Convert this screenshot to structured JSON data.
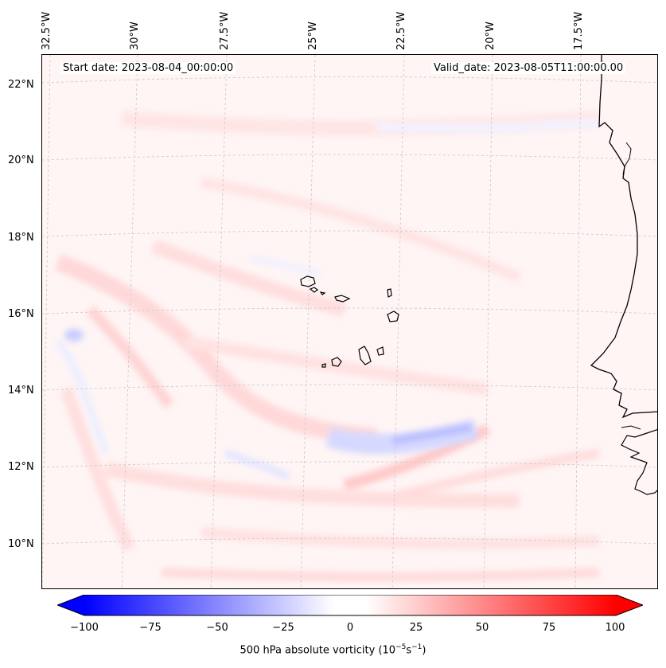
{
  "map": {
    "start_date": "Start date: 2023-08-04_00:00:00",
    "valid_date": "Valid_date: 2023-08-05T11:00:00.00",
    "lon_labels": [
      "32.5°W",
      "30°W",
      "27.5°W",
      "25°W",
      "22.5°W",
      "20°W",
      "17.5°W"
    ],
    "lat_labels": [
      "22°N",
      "20°N",
      "18°N",
      "16°N",
      "14°N",
      "12°N",
      "10°N"
    ]
  },
  "colorbar": {
    "ticks": [
      "−100",
      "−75",
      "−50",
      "−25",
      "0",
      "25",
      "50",
      "75",
      "100"
    ],
    "label_main": "500 hPa absolute vorticity (10",
    "label_sup1": "−5",
    "label_mid": "s",
    "label_sup2": "−1",
    "label_end": ")",
    "min_color": "#0000ff",
    "zero_color": "#ffffff",
    "max_color": "#ff0000"
  }
}
